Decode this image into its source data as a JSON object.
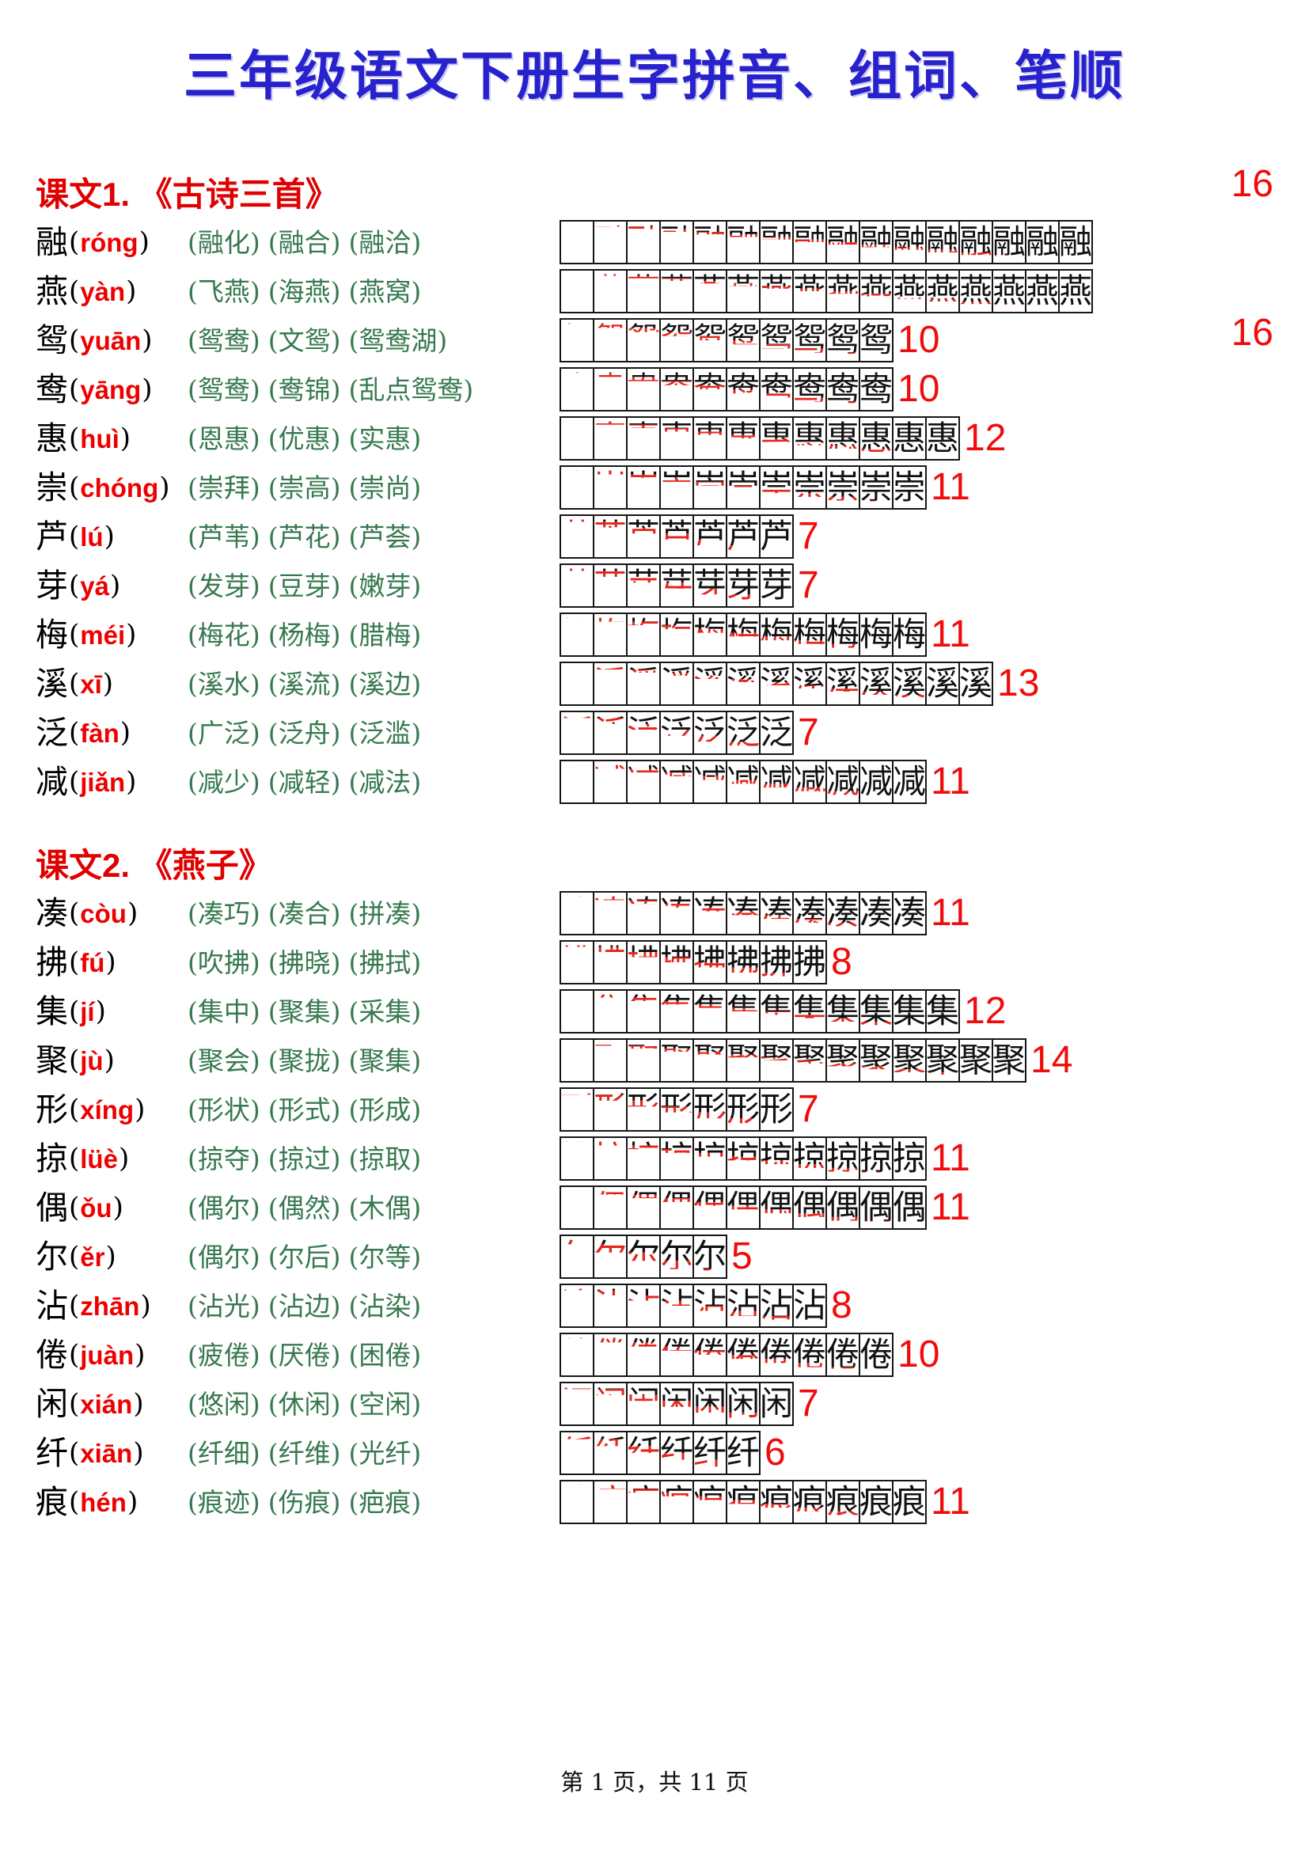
{
  "title": "三年级语文下册生字拼音、组词、笔顺",
  "footer": "第 1 页，共 11 页",
  "colors": {
    "title_blue": "#2822cc",
    "heading_red": "#e00000",
    "pinyin_red": "#ee0000",
    "word_green": "#37794f",
    "stroke_new_red": "#e4251c",
    "count_red": "#f10b0b",
    "ink_black": "#111111"
  },
  "sections": [
    {
      "heading": "课文1. 《古诗三首》",
      "rows": [
        {
          "char": "融",
          "pinyin": "róng",
          "words": [
            "(融化)",
            "(融合)",
            "(融洽)"
          ],
          "strokes": 16,
          "count_pos": "above"
        },
        {
          "char": "燕",
          "pinyin": "yàn",
          "words": [
            "(飞燕)",
            "(海燕)",
            "(燕窝)"
          ],
          "strokes": 16,
          "count_pos": "below"
        },
        {
          "char": "鸳",
          "pinyin": "yuān",
          "words": [
            "(鸳鸯)",
            "(文鸳)",
            "(鸳鸯湖)"
          ],
          "strokes": 10,
          "count_pos": "inline"
        },
        {
          "char": "鸯",
          "pinyin": "yāng",
          "words": [
            "(鸳鸯)",
            "(鸯锦)",
            "(乱点鸳鸯)"
          ],
          "strokes": 10,
          "count_pos": "inline"
        },
        {
          "char": "惠",
          "pinyin": "huì",
          "words": [
            "(恩惠)",
            "(优惠)",
            "(实惠)"
          ],
          "strokes": 12,
          "count_pos": "inline"
        },
        {
          "char": "崇",
          "pinyin": "chóng",
          "words": [
            "(崇拜)",
            "(崇高)",
            "(崇尚)"
          ],
          "strokes": 11,
          "count_pos": "inline"
        },
        {
          "char": "芦",
          "pinyin": "lú",
          "words": [
            "(芦苇)",
            "(芦花)",
            "(芦荟)"
          ],
          "strokes": 7,
          "count_pos": "inline"
        },
        {
          "char": "芽",
          "pinyin": "yá",
          "words": [
            "(发芽)",
            "(豆芽)",
            "(嫩芽)"
          ],
          "strokes": 7,
          "count_pos": "inline"
        },
        {
          "char": "梅",
          "pinyin": "méi",
          "words": [
            "(梅花)",
            "(杨梅)",
            "(腊梅)"
          ],
          "strokes": 11,
          "count_pos": "inline"
        },
        {
          "char": "溪",
          "pinyin": "xī",
          "words": [
            "(溪水)",
            "(溪流)",
            "(溪边)"
          ],
          "strokes": 13,
          "count_pos": "inline"
        },
        {
          "char": "泛",
          "pinyin": "fàn",
          "words": [
            "(广泛)",
            "(泛舟)",
            "(泛滥)"
          ],
          "strokes": 7,
          "count_pos": "inline"
        },
        {
          "char": "减",
          "pinyin": "jiǎn",
          "words": [
            "(减少)",
            "(减轻)",
            "(减法)"
          ],
          "strokes": 11,
          "count_pos": "inline"
        }
      ]
    },
    {
      "heading": "课文2. 《燕子》",
      "rows": [
        {
          "char": "凑",
          "pinyin": "còu",
          "words": [
            "(凑巧)",
            "(凑合)",
            "(拼凑)"
          ],
          "strokes": 11,
          "count_pos": "inline"
        },
        {
          "char": "拂",
          "pinyin": "fú",
          "words": [
            "(吹拂)",
            "(拂晓)",
            "(拂拭)"
          ],
          "strokes": 8,
          "count_pos": "inline"
        },
        {
          "char": "集",
          "pinyin": "jí",
          "words": [
            "(集中)",
            "(聚集)",
            "(采集)"
          ],
          "strokes": 12,
          "count_pos": "inline"
        },
        {
          "char": "聚",
          "pinyin": "jù",
          "words": [
            "(聚会)",
            "(聚拢)",
            "(聚集)"
          ],
          "strokes": 14,
          "count_pos": "inline"
        },
        {
          "char": "形",
          "pinyin": "xíng",
          "words": [
            "(形状)",
            "(形式)",
            "(形成)"
          ],
          "strokes": 7,
          "count_pos": "inline"
        },
        {
          "char": "掠",
          "pinyin": "lüè",
          "words": [
            "(掠夺)",
            "(掠过)",
            "(掠取)"
          ],
          "strokes": 11,
          "count_pos": "inline"
        },
        {
          "char": "偶",
          "pinyin": "ǒu",
          "words": [
            "(偶尔)",
            "(偶然)",
            "(木偶)"
          ],
          "strokes": 11,
          "count_pos": "inline"
        },
        {
          "char": "尔",
          "pinyin": "ěr",
          "words": [
            "(偶尔)",
            "(尔后)",
            "(尔等)"
          ],
          "strokes": 5,
          "count_pos": "inline"
        },
        {
          "char": "沾",
          "pinyin": "zhān",
          "words": [
            "(沾光)",
            "(沾边)",
            "(沾染)"
          ],
          "strokes": 8,
          "count_pos": "inline"
        },
        {
          "char": "倦",
          "pinyin": "juàn",
          "words": [
            "(疲倦)",
            "(厌倦)",
            "(困倦)"
          ],
          "strokes": 10,
          "count_pos": "inline"
        },
        {
          "char": "闲",
          "pinyin": "xián",
          "words": [
            "(悠闲)",
            "(休闲)",
            "(空闲)"
          ],
          "strokes": 7,
          "count_pos": "inline"
        },
        {
          "char": "纤",
          "pinyin": "xiān",
          "words": [
            "(纤细)",
            "(纤维)",
            "(光纤)"
          ],
          "strokes": 6,
          "count_pos": "inline"
        },
        {
          "char": "痕",
          "pinyin": "hén",
          "words": [
            "(痕迹)",
            "(伤痕)",
            "(疤痕)"
          ],
          "strokes": 11,
          "count_pos": "inline"
        }
      ]
    }
  ]
}
